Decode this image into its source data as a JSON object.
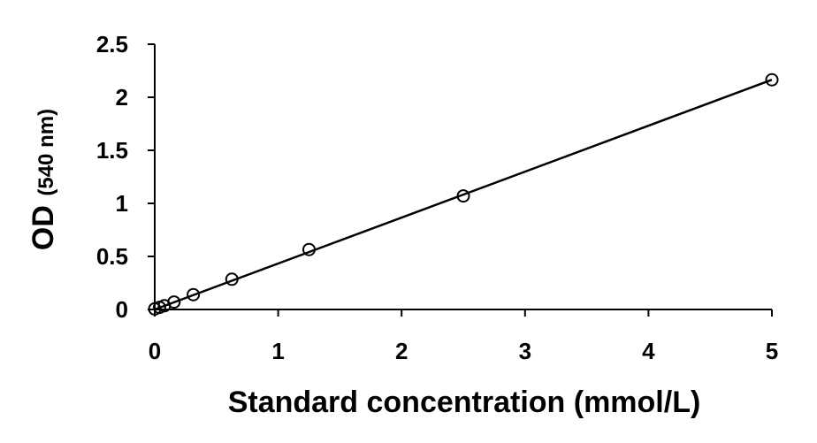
{
  "chart_data": {
    "type": "scatter",
    "title": "",
    "xlabel": "Standard concentration (mmol/L)",
    "ylabel_main": "OD",
    "ylabel_unit": "(540 nm)",
    "xlim": [
      0,
      5
    ],
    "ylim": [
      0,
      2.5
    ],
    "x_ticks": [
      0,
      1,
      2,
      3,
      4,
      5
    ],
    "x_tick_labels": [
      "0",
      "1",
      "2",
      "3",
      "4",
      "5"
    ],
    "y_ticks": [
      0,
      0.5,
      1,
      1.5,
      2,
      2.5
    ],
    "y_tick_labels": [
      "0",
      "0.5",
      "1",
      "1.5",
      "2",
      "2.5"
    ],
    "grid": false,
    "series": [
      {
        "marker": "open-circle",
        "x": [
          0.0,
          0.039,
          0.078,
          0.156,
          0.3125,
          0.625,
          1.25,
          2.5,
          5.0
        ],
        "y": [
          0.005,
          0.02,
          0.035,
          0.07,
          0.14,
          0.285,
          0.565,
          1.07,
          2.165
        ]
      }
    ],
    "trendline": {
      "x": [
        0.0,
        5.0
      ],
      "y": [
        0.0,
        2.165
      ]
    },
    "colors": {
      "marker_stroke": "#000000",
      "line": "#000000",
      "axis": "#000000"
    }
  }
}
